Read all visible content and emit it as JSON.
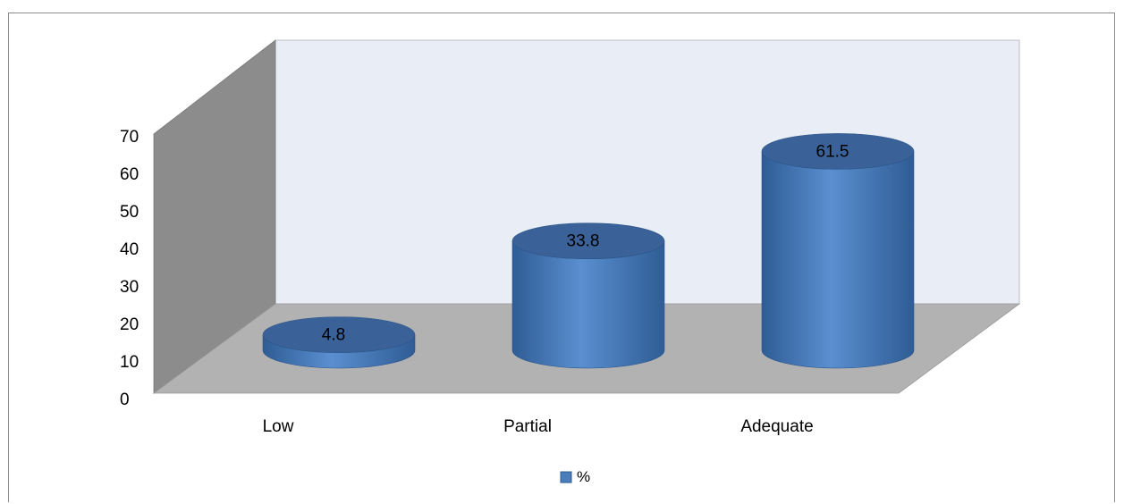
{
  "chart_data": {
    "type": "bar",
    "style": "3d-cylinder",
    "categories": [
      "Low",
      "Partial",
      "Adequate"
    ],
    "series": [
      {
        "name": "%",
        "values": [
          4.8,
          33.8,
          61.5
        ],
        "color": "#4a7ebb"
      }
    ],
    "data_labels": [
      "4.8",
      "33.8",
      "61.5"
    ],
    "y_ticks": [
      "0",
      "10",
      "20",
      "30",
      "40",
      "50",
      "60",
      "70"
    ],
    "ylim": [
      0,
      70
    ],
    "legend_position": "bottom",
    "colors": {
      "back_wall": "#e8edf6",
      "side_wall": "#8c8c8c",
      "floor": "#b2b2b2",
      "bar_body": "#4a7ebb",
      "bar_top": "#3a6298"
    }
  }
}
